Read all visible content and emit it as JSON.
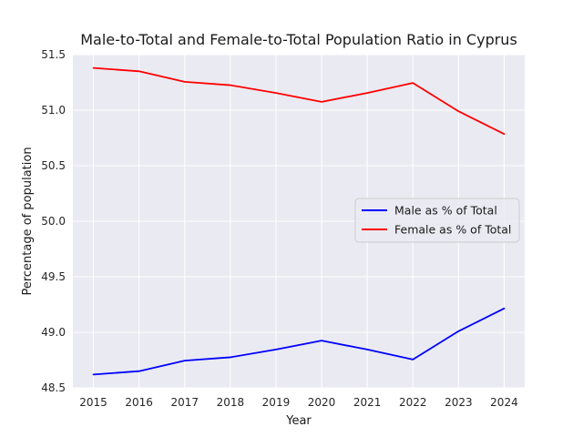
{
  "chart_data": {
    "type": "line",
    "title": "Male-to-Total and Female-to-Total Population Ratio in Cyprus",
    "xlabel": "Year",
    "ylabel": "Percentage of population",
    "x": [
      2015,
      2016,
      2017,
      2018,
      2019,
      2020,
      2021,
      2022,
      2023,
      2024
    ],
    "xlim": [
      2014.55,
      2024.45
    ],
    "ylim": [
      48.5,
      51.5
    ],
    "yticks": [
      "48.5",
      "49.0",
      "49.5",
      "50.0",
      "50.5",
      "51.0",
      "51.5"
    ],
    "xticks": [
      "2015",
      "2016",
      "2017",
      "2018",
      "2019",
      "2020",
      "2021",
      "2022",
      "2023",
      "2024"
    ],
    "grid": true,
    "legend_position": "right",
    "series": [
      {
        "name": "Male as % of Total",
        "color": "#0000ff",
        "values": [
          48.62,
          48.65,
          48.745,
          48.775,
          48.845,
          48.925,
          48.845,
          48.755,
          49.01,
          49.215
        ]
      },
      {
        "name": "Female as % of Total",
        "color": "#ff0000",
        "values": [
          51.38,
          51.35,
          51.255,
          51.225,
          51.155,
          51.075,
          51.155,
          51.245,
          50.99,
          50.785
        ]
      }
    ]
  }
}
